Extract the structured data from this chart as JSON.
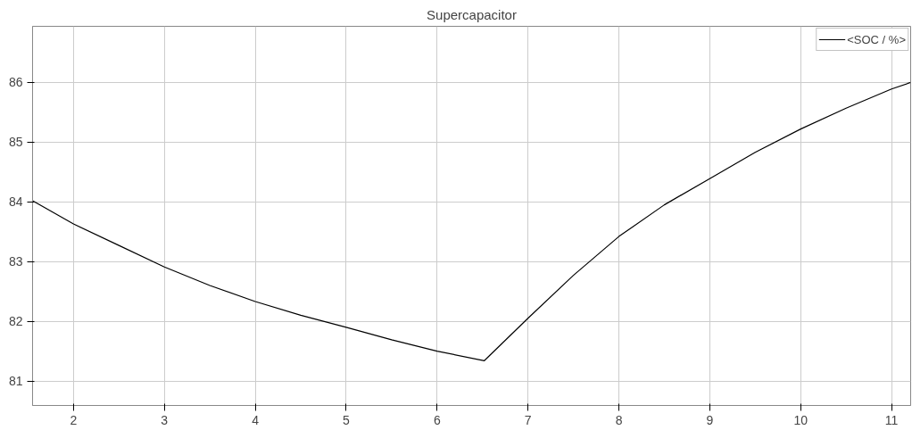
{
  "chart_data": {
    "type": "line",
    "title": "Supercapacitor",
    "x": [
      1.55,
      2,
      2.5,
      3,
      3.5,
      4,
      4.5,
      5,
      5.5,
      6,
      6.52,
      7,
      7.5,
      8,
      8.5,
      9,
      9.5,
      10,
      10.5,
      11,
      11.21
    ],
    "series": [
      {
        "name": "<SOC / %>",
        "color": "#000000",
        "values": [
          84.02,
          83.63,
          83.27,
          82.91,
          82.6,
          82.33,
          82.1,
          81.9,
          81.69,
          81.5,
          81.34,
          82.05,
          82.77,
          83.42,
          83.95,
          84.39,
          84.83,
          85.22,
          85.57,
          85.89,
          86.0
        ]
      }
    ],
    "xlim": [
      1.55,
      11.21
    ],
    "ylim": [
      80.59,
      86.94
    ],
    "xticks": [
      2,
      3,
      4,
      5,
      6,
      7,
      8,
      9,
      10,
      11
    ],
    "yticks": [
      81,
      82,
      83,
      84,
      85,
      86
    ],
    "grid": true,
    "legend": "top right",
    "line_style": "solid"
  }
}
